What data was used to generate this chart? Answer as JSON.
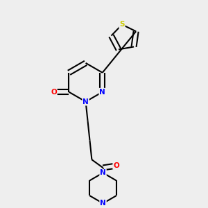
{
  "bg_color": "#eeeeee",
  "atom_colors": {
    "N": "#0000ff",
    "O": "#ff0000",
    "S": "#cccc00"
  },
  "bond_lw": 1.5,
  "dbo": 0.012
}
